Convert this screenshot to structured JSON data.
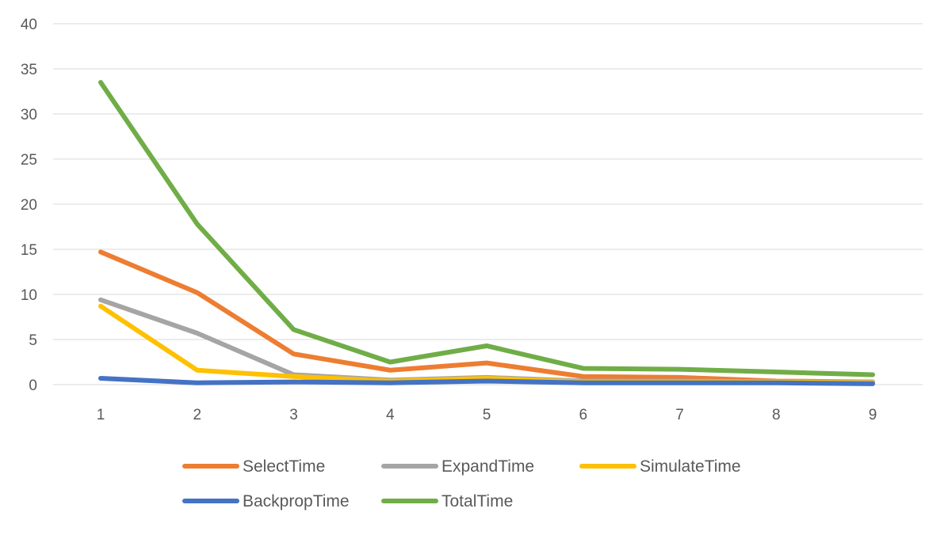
{
  "chart_data": {
    "type": "line",
    "title": "",
    "xlabel": "",
    "ylabel": "",
    "categories": [
      "1",
      "2",
      "3",
      "4",
      "5",
      "6",
      "7",
      "8",
      "9"
    ],
    "ylim": [
      0,
      40
    ],
    "yticks": [
      0,
      5,
      10,
      15,
      20,
      25,
      30,
      35,
      40
    ],
    "grid": true,
    "legend_position": "bottom",
    "series": [
      {
        "name": "SelectTime",
        "color": "#ED7D31",
        "values": [
          14.7,
          10.2,
          3.4,
          1.6,
          2.4,
          0.9,
          0.8,
          0.4,
          0.3
        ]
      },
      {
        "name": "ExpandTime",
        "color": "#A5A5A5",
        "values": [
          9.4,
          5.7,
          1.1,
          0.5,
          0.8,
          0.4,
          0.4,
          0.3,
          0.3
        ]
      },
      {
        "name": "SimulateTime",
        "color": "#FFC000",
        "values": [
          8.7,
          1.6,
          0.9,
          0.4,
          0.7,
          0.3,
          0.3,
          0.3,
          0.2
        ]
      },
      {
        "name": "BackpropTime",
        "color": "#4472C4",
        "values": [
          0.7,
          0.2,
          0.3,
          0.2,
          0.4,
          0.2,
          0.2,
          0.2,
          0.1
        ]
      },
      {
        "name": "TotalTime",
        "color": "#70AD47",
        "values": [
          33.5,
          17.8,
          6.1,
          2.5,
          4.3,
          1.8,
          1.7,
          1.4,
          1.1
        ]
      }
    ]
  }
}
